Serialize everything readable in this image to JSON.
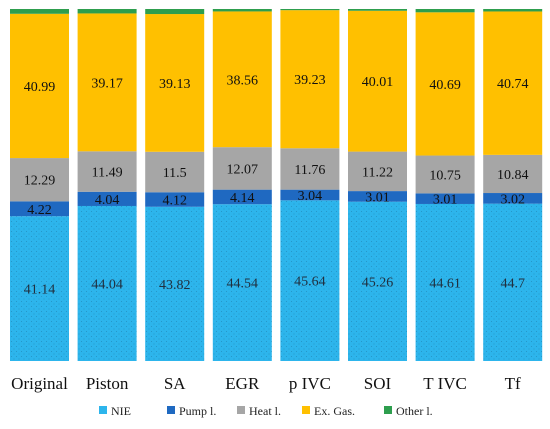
{
  "chart_data": {
    "type": "bar",
    "stacked": true,
    "normalized_percent": true,
    "categories": [
      "Original",
      "Piston",
      "SA",
      "EGR",
      "p IVC",
      "SOI",
      "T IVC",
      "Tf"
    ],
    "series": [
      {
        "name": "NIE",
        "color": "#2DB5EC",
        "values": [
          41.14,
          44.04,
          43.82,
          44.54,
          45.64,
          45.26,
          44.61,
          44.7
        ]
      },
      {
        "name": "Pump l.",
        "color": "#1F69C1",
        "values": [
          4.22,
          4.04,
          4.12,
          4.14,
          3.04,
          3.01,
          3.01,
          3.02
        ]
      },
      {
        "name": "Heat l.",
        "color": "#A6A6A6",
        "values": [
          12.29,
          11.49,
          11.5,
          12.07,
          11.76,
          11.22,
          10.75,
          10.84
        ]
      },
      {
        "name": "Ex. Gas.",
        "color": "#FFC000",
        "values": [
          40.99,
          39.17,
          39.13,
          38.56,
          39.23,
          40.01,
          40.69,
          40.74
        ]
      },
      {
        "name": "Other l.",
        "color": "#2E9E4E",
        "values": [
          1.36,
          1.26,
          1.43,
          0.69,
          0.33,
          0.5,
          0.94,
          0.7
        ]
      }
    ],
    "data_labels_for_series": [
      "NIE",
      "Pump l.",
      "Heat l.",
      "Ex. Gas."
    ],
    "ylim": [
      0,
      100
    ],
    "grid": false,
    "legend_position": "bottom",
    "title": "",
    "xlabel": "",
    "ylabel": ""
  }
}
